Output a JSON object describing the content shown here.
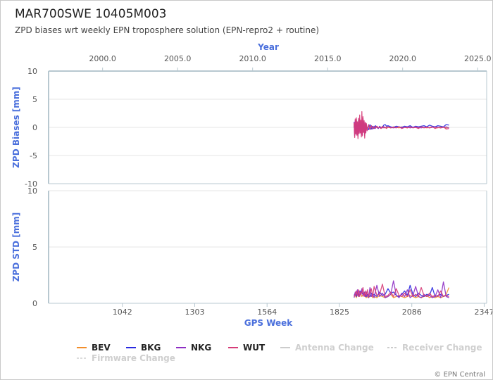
{
  "title": "MAR700SWE 10405M003",
  "subtitle": "ZPD biases wrt weekly EPN troposphere solution (EPN-repro2 + routine)",
  "credit": "© EPN Central",
  "colors": {
    "axis_label": "#4a6fdc",
    "gridline": "#e6e6e6",
    "axis_line": "#b8c8d0"
  },
  "chart_data": [
    {
      "type": "line",
      "name": "bias-panel",
      "ylabel": "ZPD Biases [mm]",
      "ylim": [
        -10,
        10
      ],
      "yticks": [
        10,
        5,
        0,
        -5,
        -10
      ],
      "top_xlabel": "Year",
      "top_xlim": [
        1996.4,
        2025.6
      ],
      "top_xticks": [
        2000.0,
        2005.0,
        2010.0,
        2015.0,
        2020.0,
        2025.0
      ],
      "top_xtick_labels": [
        "2000.0",
        "2005.0",
        "2010.0",
        "2015.0",
        "2020.0",
        "2025.0"
      ],
      "grid": true,
      "x": [
        1878,
        1880,
        1882,
        1884,
        1886,
        1888,
        1890,
        1892,
        1894,
        1896,
        1898,
        1900,
        1902,
        1904,
        1906,
        1908,
        1910,
        1912,
        1914,
        1916,
        1918,
        1920,
        1922,
        1925,
        1930,
        1935,
        1940,
        1945,
        1950,
        1955,
        1960,
        1965,
        1970,
        1975,
        1980,
        1985,
        1990,
        1995,
        2000,
        2010,
        2020,
        2030,
        2040,
        2050,
        2060,
        2070,
        2080,
        2090,
        2100,
        2110,
        2120,
        2130,
        2140,
        2150,
        2160,
        2170,
        2180,
        2190,
        2200,
        2210,
        2220
      ],
      "series": [
        {
          "name": "BEV",
          "color": "#f28e2b",
          "values": [
            0.5,
            -1.0,
            0.8,
            -0.6,
            1.0,
            -0.8,
            0.4,
            -1.1,
            0.9,
            -0.7,
            1.2,
            -0.5,
            0.6,
            -1.0,
            0.8,
            -0.9,
            1.1,
            -0.4,
            0.7,
            -1.2,
            0.5,
            -0.6,
            0.4,
            -0.3,
            0.3,
            -0.2,
            0.2,
            -0.3,
            0.1,
            0.0,
            0.2,
            -0.1,
            0.1,
            -0.2,
            0.2,
            0.0,
            -0.1,
            0.1,
            0.0,
            -0.1,
            0.1,
            0.0,
            -0.1,
            0.1,
            0.0,
            -0.1,
            0.1,
            0.0,
            0.0,
            -0.1,
            0.1,
            0.0,
            -0.1,
            0.0,
            0.1,
            0.0,
            -0.1,
            0.1,
            0.0,
            -0.1,
            0.0
          ]
        },
        {
          "name": "BKG",
          "color": "#2a2ae0",
          "values": [
            0.2,
            -0.6,
            0.5,
            -0.3,
            0.7,
            -0.4,
            0.3,
            -0.8,
            0.6,
            -0.2,
            0.9,
            -0.3,
            0.4,
            -0.7,
            0.5,
            -0.5,
            0.8,
            -0.1,
            0.4,
            -0.9,
            0.3,
            -0.4,
            0.1,
            -0.2,
            -0.4,
            0.5,
            -0.3,
            0.2,
            -0.2,
            0.3,
            0.0,
            -0.2,
            0.2,
            -0.1,
            0.0,
            0.4,
            0.5,
            0.2,
            0.3,
            0.1,
            0.0,
            0.2,
            0.1,
            0.0,
            0.2,
            0.1,
            0.3,
            0.0,
            0.2,
            0.1,
            0.2,
            0.3,
            0.1,
            0.4,
            0.2,
            0.1,
            0.3,
            0.2,
            0.1,
            0.5,
            0.4
          ]
        },
        {
          "name": "NKG",
          "color": "#8e2ec4",
          "values": [
            1.0,
            -1.5,
            1.2,
            -1.1,
            1.4,
            -1.3,
            0.9,
            -1.6,
            1.3,
            -1.0,
            1.5,
            -0.9,
            1.1,
            -1.4,
            1.2,
            -1.3,
            1.6,
            -0.8,
            1.0,
            -1.5,
            0.8,
            -0.9,
            0.6,
            -0.5,
            0.4,
            -0.4,
            0.3,
            -0.3,
            0.2,
            -0.1,
            0.1,
            -0.2,
            0.1,
            0.0,
            -0.1,
            0.1,
            0.0,
            -0.1,
            0.1,
            0.0,
            -0.1,
            0.0,
            0.1,
            -0.1,
            0.0,
            0.1,
            -0.1,
            0.0,
            0.1,
            0.0,
            -0.1,
            0.0,
            0.1,
            -0.1,
            0.0,
            0.1,
            0.0,
            -0.1,
            0.0,
            0.1,
            -0.1
          ]
        },
        {
          "name": "WUT",
          "color": "#d63c78",
          "values": [
            0.8,
            -1.8,
            1.5,
            -1.2,
            1.7,
            -1.4,
            1.0,
            -2.0,
            1.6,
            -1.1,
            2.2,
            -1.0,
            1.3,
            -1.7,
            2.8,
            -1.5,
            1.9,
            -0.9,
            1.2,
            -1.9,
            0.9,
            -1.0,
            0.7,
            -0.6,
            0.5,
            -0.4,
            0.3,
            -0.2,
            0.1,
            -0.2,
            0.2,
            -0.1,
            0.0,
            -0.2,
            0.1,
            -0.1,
            0.0,
            -0.2,
            0.1,
            -0.1,
            0.0,
            -0.1,
            0.1,
            -0.2,
            0.0,
            -0.1,
            0.1,
            -0.1,
            0.0,
            -0.2,
            0.1,
            -0.1,
            0.0,
            -0.1,
            0.1,
            -0.2,
            0.0,
            -0.1,
            0.1,
            -0.3,
            -0.2
          ]
        }
      ]
    },
    {
      "type": "line",
      "name": "std-panel",
      "ylabel": "ZPD STD [mm]",
      "ylim": [
        0,
        10
      ],
      "yticks": [
        10,
        5,
        0
      ],
      "xlabel": "GPS Week",
      "xlim": [
        776,
        2356
      ],
      "xticks": [
        1042,
        1303,
        1564,
        1825,
        2086,
        2347
      ],
      "grid": true,
      "x": [
        1878,
        1882,
        1886,
        1890,
        1894,
        1898,
        1902,
        1906,
        1910,
        1914,
        1918,
        1922,
        1926,
        1930,
        1935,
        1940,
        1945,
        1950,
        1960,
        1970,
        1980,
        1990,
        2000,
        2010,
        2020,
        2030,
        2040,
        2050,
        2060,
        2070,
        2080,
        2090,
        2100,
        2110,
        2120,
        2130,
        2140,
        2150,
        2160,
        2170,
        2180,
        2190,
        2200,
        2210,
        2220
      ],
      "series": [
        {
          "name": "BEV",
          "color": "#f28e2b",
          "values": [
            0.6,
            0.7,
            0.5,
            0.8,
            0.6,
            0.7,
            0.9,
            0.6,
            0.8,
            0.7,
            0.6,
            0.5,
            0.6,
            0.5,
            0.6,
            0.7,
            0.5,
            0.6,
            0.5,
            0.7,
            0.6,
            0.5,
            0.6,
            0.8,
            0.5,
            0.6,
            0.7,
            0.6,
            0.5,
            0.6,
            0.7,
            0.6,
            0.5,
            0.6,
            0.5,
            0.6,
            0.7,
            0.5,
            0.6,
            0.5,
            0.6,
            0.5,
            0.6,
            0.8,
            1.4
          ]
        },
        {
          "name": "BKG",
          "color": "#2a2ae0",
          "values": [
            0.7,
            0.9,
            0.6,
            1.0,
            0.8,
            0.7,
            1.1,
            0.9,
            0.8,
            1.0,
            0.7,
            0.6,
            0.8,
            0.7,
            0.6,
            0.9,
            0.7,
            0.8,
            0.6,
            1.0,
            0.7,
            0.8,
            1.3,
            0.9,
            1.0,
            0.7,
            0.6,
            0.8,
            1.1,
            0.7,
            1.6,
            0.8,
            0.6,
            0.9,
            0.7,
            0.6,
            0.8,
            0.7,
            1.4,
            0.6,
            0.7,
            0.8,
            0.6,
            0.7,
            0.8
          ]
        },
        {
          "name": "NKG",
          "color": "#8e2ec4",
          "values": [
            0.5,
            1.0,
            0.7,
            1.2,
            0.6,
            1.1,
            0.8,
            1.3,
            0.7,
            0.9,
            0.6,
            1.0,
            0.7,
            0.5,
            1.4,
            0.6,
            0.8,
            0.5,
            1.6,
            0.6,
            0.9,
            0.5,
            0.6,
            0.8,
            2.0,
            0.7,
            0.5,
            0.9,
            0.6,
            1.2,
            0.5,
            0.7,
            1.5,
            0.6,
            0.5,
            0.8,
            0.6,
            0.7,
            0.5,
            0.6,
            1.2,
            0.5,
            1.9,
            0.6,
            0.5
          ]
        },
        {
          "name": "WUT",
          "color": "#d63c78",
          "values": [
            0.6,
            0.8,
            1.1,
            0.7,
            1.2,
            0.6,
            1.0,
            0.9,
            1.4,
            0.6,
            1.1,
            0.7,
            1.2,
            0.6,
            0.9,
            1.3,
            0.6,
            1.5,
            0.7,
            0.8,
            1.7,
            0.6,
            0.7,
            1.0,
            0.6,
            1.3,
            0.7,
            0.6,
            0.9,
            0.6,
            1.2,
            0.6,
            0.8,
            0.6,
            1.4,
            0.7,
            0.6,
            0.9,
            0.6,
            0.7,
            0.6,
            1.1,
            0.6,
            0.7,
            0.6
          ]
        }
      ]
    }
  ],
  "legend": [
    {
      "label": "BEV",
      "color": "#f28e2b",
      "dashed": false,
      "faded": false
    },
    {
      "label": "BKG",
      "color": "#2a2ae0",
      "dashed": false,
      "faded": false
    },
    {
      "label": "NKG",
      "color": "#8e2ec4",
      "dashed": false,
      "faded": false
    },
    {
      "label": "WUT",
      "color": "#d63c78",
      "dashed": false,
      "faded": false
    },
    {
      "label": "Antenna Change",
      "color": "#cccccc",
      "dashed": false,
      "faded": true
    },
    {
      "label": "Receiver Change",
      "color": "#cccccc",
      "dashed": true,
      "faded": true
    },
    {
      "label": "Firmware Change",
      "color": "#dcdcdc",
      "dashed": true,
      "faded": true
    }
  ]
}
